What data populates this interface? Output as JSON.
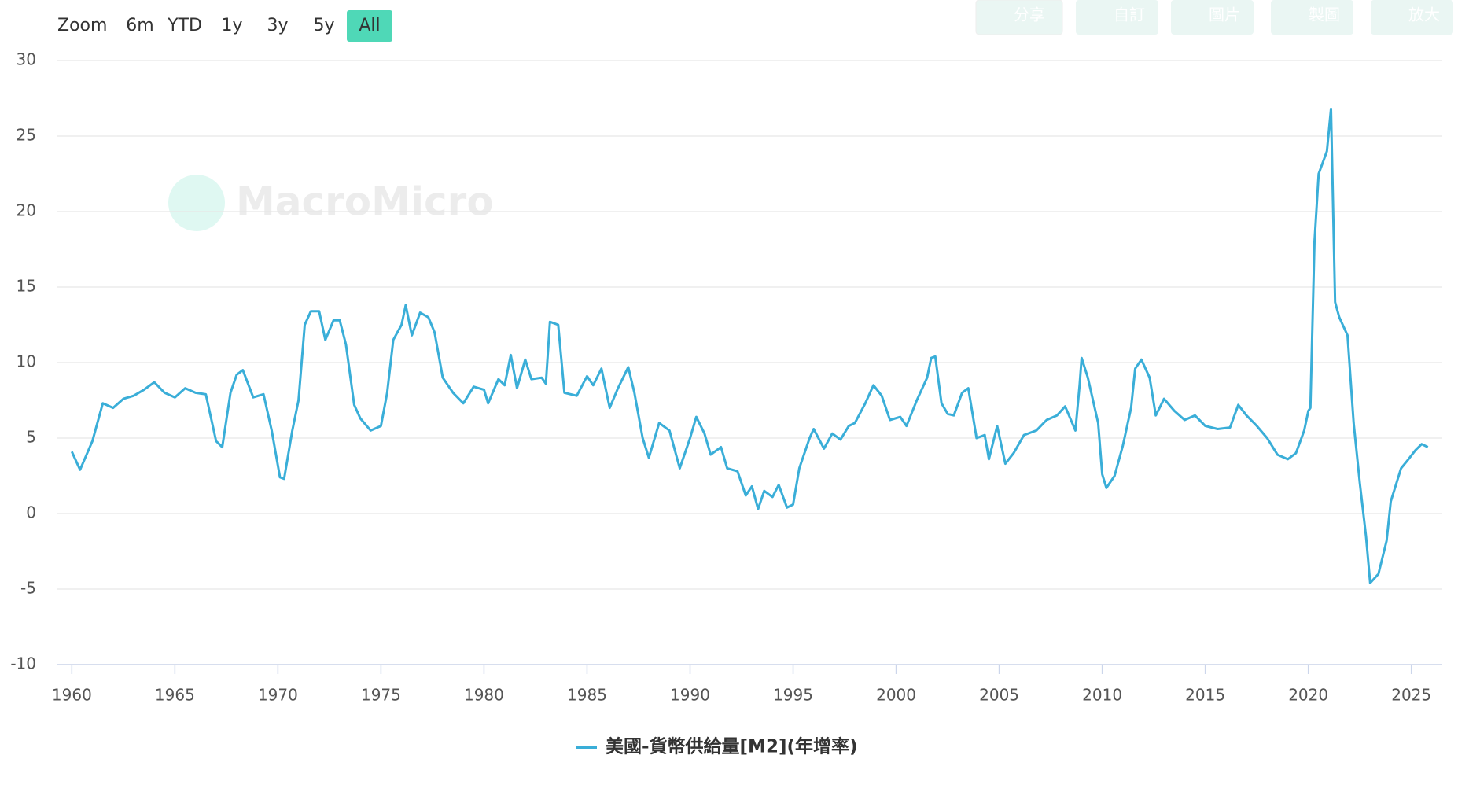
{
  "toolbar": {
    "zoom_label": "Zoom",
    "ranges": [
      "6m",
      "YTD",
      "1y",
      "3y",
      "5y",
      "All"
    ],
    "active": "All",
    "buttons": [
      "分享",
      "自訂",
      "圖片",
      "製圖",
      "放大"
    ]
  },
  "watermark": "MacroMicro",
  "chart_data": {
    "type": "line",
    "x": [
      1960.0,
      1960.4,
      1961.0,
      1961.5,
      1962.0,
      1962.5,
      1963.0,
      1963.5,
      1964.0,
      1964.5,
      1965.0,
      1965.5,
      1966.0,
      1966.5,
      1967.0,
      1967.3,
      1967.7,
      1968.0,
      1968.3,
      1968.8,
      1969.3,
      1969.7,
      1970.1,
      1970.3,
      1970.7,
      1971.0,
      1971.3,
      1971.6,
      1972.0,
      1972.3,
      1972.7,
      1973.0,
      1973.3,
      1973.7,
      1974.0,
      1974.5,
      1975.0,
      1975.3,
      1975.6,
      1976.0,
      1976.2,
      1976.5,
      1976.9,
      1977.3,
      1977.6,
      1978.0,
      1978.5,
      1979.0,
      1979.5,
      1980.0,
      1980.2,
      1980.7,
      1981.0,
      1981.3,
      1981.6,
      1982.0,
      1982.3,
      1982.8,
      1983.0,
      1983.2,
      1983.6,
      1983.9,
      1984.5,
      1985.0,
      1985.3,
      1985.7,
      1986.1,
      1986.5,
      1987.0,
      1987.3,
      1987.7,
      1988.0,
      1988.5,
      1989.0,
      1989.5,
      1990.0,
      1990.3,
      1990.7,
      1991.0,
      1991.5,
      1991.8,
      1992.3,
      1992.7,
      1993.0,
      1993.3,
      1993.6,
      1994.0,
      1994.3,
      1994.7,
      1995.0,
      1995.3,
      1995.8,
      1996.0,
      1996.5,
      1996.9,
      1997.3,
      1997.7,
      1998.0,
      1998.5,
      1998.9,
      1999.3,
      1999.7,
      2000.2,
      2000.5,
      2001.0,
      2001.5,
      2001.7,
      2001.9,
      2002.2,
      2002.5,
      2002.8,
      2003.2,
      2003.5,
      2003.9,
      2004.3,
      2004.5,
      2004.9,
      2005.3,
      2005.7,
      2006.2,
      2006.8,
      2007.3,
      2007.8,
      2008.2,
      2008.7,
      2008.9,
      2009.0,
      2009.3,
      2009.8,
      2010.0,
      2010.2,
      2010.6,
      2011.0,
      2011.4,
      2011.6,
      2011.9,
      2012.3,
      2012.6,
      2013.0,
      2013.5,
      2014.0,
      2014.5,
      2015.0,
      2015.6,
      2016.2,
      2016.6,
      2017.0,
      2017.5,
      2018.0,
      2018.5,
      2019.0,
      2019.4,
      2019.8,
      2020.0,
      2020.1,
      2020.3,
      2020.5,
      2020.9,
      2021.1,
      2021.3,
      2021.5,
      2021.9,
      2022.2,
      2022.5,
      2022.8,
      2023.0,
      2023.4,
      2023.8,
      2024.0,
      2024.5,
      2024.8,
      2025.2,
      2025.5,
      2025.8
    ],
    "series": [
      {
        "name": "美國-貨幣供給量[M2](年增率)",
        "color": "#3aaed8",
        "values": [
          4.1,
          2.9,
          4.8,
          7.3,
          7.0,
          7.6,
          7.8,
          8.2,
          8.7,
          8.0,
          7.7,
          8.3,
          8.0,
          7.9,
          4.8,
          4.4,
          8.0,
          9.2,
          9.5,
          7.7,
          7.9,
          5.5,
          2.4,
          2.3,
          5.5,
          7.5,
          12.5,
          13.4,
          13.4,
          11.5,
          12.8,
          12.8,
          11.2,
          7.2,
          6.3,
          5.5,
          5.8,
          8.0,
          11.5,
          12.5,
          13.8,
          11.8,
          13.3,
          13.0,
          12.0,
          9.0,
          8.0,
          7.3,
          8.4,
          8.2,
          7.3,
          8.9,
          8.5,
          10.5,
          8.3,
          10.2,
          8.9,
          9.0,
          8.6,
          12.7,
          12.5,
          8.0,
          7.8,
          9.1,
          8.5,
          9.6,
          7.0,
          8.3,
          9.7,
          8.0,
          5.0,
          3.7,
          6.0,
          5.5,
          3.0,
          5.0,
          6.4,
          5.3,
          3.9,
          4.4,
          3.0,
          2.8,
          1.2,
          1.8,
          0.3,
          1.5,
          1.1,
          1.9,
          0.4,
          0.6,
          3.0,
          5.0,
          5.6,
          4.3,
          5.3,
          4.9,
          5.8,
          6.0,
          7.3,
          8.5,
          7.8,
          6.2,
          6.4,
          5.8,
          7.5,
          9.0,
          10.3,
          10.4,
          7.3,
          6.6,
          6.5,
          8.0,
          8.3,
          5.0,
          5.2,
          3.6,
          5.8,
          3.3,
          4.0,
          5.2,
          5.5,
          6.2,
          6.5,
          7.1,
          5.5,
          8.5,
          10.3,
          9.0,
          6.0,
          2.6,
          1.7,
          2.5,
          4.5,
          7.0,
          9.6,
          10.2,
          9.0,
          6.5,
          7.6,
          6.8,
          6.2,
          6.5,
          5.8,
          5.6,
          5.7,
          7.2,
          6.5,
          5.8,
          5.0,
          3.9,
          3.6,
          4.0,
          5.5,
          6.8,
          7.0,
          18.0,
          22.5,
          24.0,
          26.8,
          14.0,
          13.0,
          11.8,
          6.0,
          2.0,
          -1.5,
          -4.6,
          -4.0,
          -1.8,
          0.8,
          3.0,
          3.5,
          4.2,
          4.6,
          4.4
        ]
      }
    ],
    "xlim": [
      1959.3,
      2026.5
    ],
    "xticks": [
      1960,
      1965,
      1970,
      1975,
      1980,
      1985,
      1990,
      1995,
      2000,
      2005,
      2010,
      2015,
      2020,
      2025
    ],
    "ylim": [
      -10,
      30
    ],
    "yticks": [
      -10,
      -5,
      0,
      5,
      10,
      15,
      20,
      25,
      30
    ],
    "grid": true
  }
}
